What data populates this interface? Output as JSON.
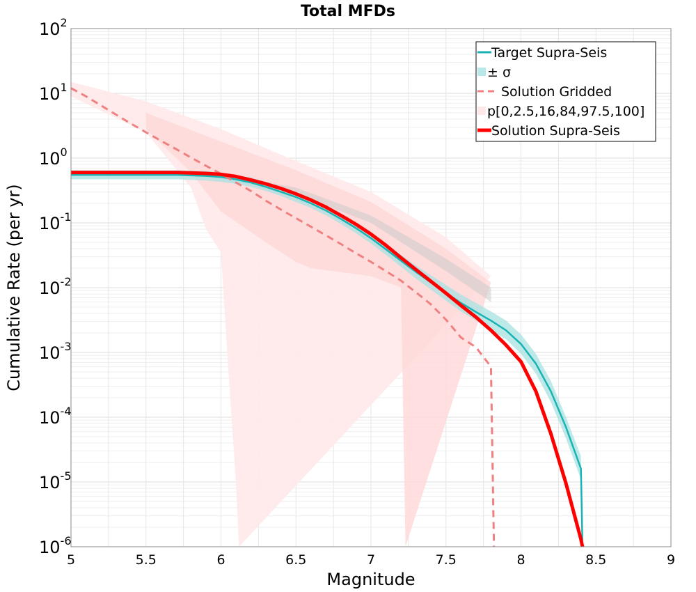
{
  "chart_data": {
    "type": "line",
    "title": "Total MFDs",
    "xlabel": "Magnitude",
    "ylabel": "Cumulative Rate (per yr)",
    "xlim": [
      5,
      9
    ],
    "ylim": [
      1e-06,
      100
    ],
    "yscale": "log",
    "grid": true,
    "legend_position": "top-right",
    "xticks": [
      "5",
      "5.5",
      "6",
      "6.5",
      "7",
      "7.5",
      "8",
      "8.5",
      "9"
    ],
    "yticks": [
      {
        "base": "10",
        "exp": "2"
      },
      {
        "base": "10",
        "exp": "1"
      },
      {
        "base": "10",
        "exp": "0"
      },
      {
        "base": "10",
        "exp": "-1"
      },
      {
        "base": "10",
        "exp": "-2"
      },
      {
        "base": "10",
        "exp": "-3"
      },
      {
        "base": "10",
        "exp": "-4"
      },
      {
        "base": "10",
        "exp": "-5"
      },
      {
        "base": "10",
        "exp": "-6"
      }
    ],
    "legend": [
      {
        "label": "Target Supra-Seis",
        "style": "line",
        "color": "#1ab3b3"
      },
      {
        "label": "± σ",
        "style": "band",
        "color": "#b8e8e8"
      },
      {
        "label": "Solution Gridded",
        "style": "dashed",
        "color": "#f08080"
      },
      {
        "label": "p[0,2.5,16,84,97.5,100]",
        "style": "band",
        "color": "#ffe8e8"
      },
      {
        "label": "Solution Supra-Seis",
        "style": "thick",
        "color": "#ff0000"
      }
    ],
    "colors": {
      "target": "#1ab3b3",
      "target_band": "#a8e2e2",
      "gridded": "#f08080",
      "supra": "#ff0000",
      "pct_outer": "#ffe9e9",
      "pct_mid": "#ffd9d9",
      "pct_inner": "#c8c8c8"
    },
    "x": [
      5.0,
      5.1,
      5.2,
      5.3,
      5.4,
      5.5,
      5.6,
      5.7,
      5.8,
      5.9,
      6.0,
      6.1,
      6.2,
      6.3,
      6.4,
      6.5,
      6.6,
      6.7,
      6.8,
      6.9,
      7.0,
      7.1,
      7.2,
      7.3,
      7.4,
      7.5,
      7.6,
      7.7,
      7.8,
      7.9,
      8.0,
      8.1,
      8.2,
      8.3,
      8.4,
      8.41
    ],
    "series": [
      {
        "name": "Target Supra-Seis",
        "role": "target",
        "values": [
          0.55,
          0.55,
          0.55,
          0.55,
          0.55,
          0.55,
          0.55,
          0.55,
          0.54,
          0.53,
          0.51,
          0.47,
          0.42,
          0.36,
          0.3,
          0.25,
          0.2,
          0.155,
          0.115,
          0.083,
          0.058,
          0.039,
          0.026,
          0.0175,
          0.012,
          0.0083,
          0.0058,
          0.0042,
          0.0031,
          0.0022,
          0.00135,
          0.00067,
          0.00025,
          7e-05,
          1.6e-05,
          1e-06
        ]
      },
      {
        "name": "± σ (upper)",
        "role": "target_upper",
        "values": [
          0.65,
          0.65,
          0.65,
          0.65,
          0.65,
          0.65,
          0.65,
          0.65,
          0.64,
          0.63,
          0.6,
          0.55,
          0.5,
          0.43,
          0.36,
          0.3,
          0.24,
          0.185,
          0.138,
          0.1,
          0.07,
          0.048,
          0.032,
          0.022,
          0.0155,
          0.011,
          0.0078,
          0.0058,
          0.0043,
          0.0031,
          0.0019,
          0.00095,
          0.00036,
          0.0001,
          2.5e-05,
          1e-06
        ]
      },
      {
        "name": "± σ (lower)",
        "role": "target_lower",
        "values": [
          0.47,
          0.47,
          0.47,
          0.47,
          0.47,
          0.47,
          0.47,
          0.47,
          0.46,
          0.45,
          0.43,
          0.4,
          0.36,
          0.31,
          0.26,
          0.21,
          0.17,
          0.13,
          0.096,
          0.069,
          0.048,
          0.032,
          0.021,
          0.0138,
          0.0093,
          0.0063,
          0.0043,
          0.0031,
          0.0022,
          0.0016,
          0.00095,
          0.00047,
          0.00017,
          4.7e-05,
          1.1e-05,
          1e-06
        ]
      },
      {
        "name": "Solution Gridded",
        "role": "gridded",
        "x": [
          5.0,
          5.1,
          5.2,
          5.3,
          5.4,
          5.5,
          5.6,
          5.7,
          5.8,
          5.9,
          6.0,
          6.1,
          6.2,
          6.3,
          6.4,
          6.5,
          6.6,
          6.7,
          6.8,
          6.9,
          7.0,
          7.1,
          7.2,
          7.3,
          7.4,
          7.5,
          7.6,
          7.7,
          7.8,
          7.82
        ],
        "values": [
          12.0,
          9.0,
          6.5,
          4.7,
          3.4,
          2.5,
          1.85,
          1.38,
          1.02,
          0.76,
          0.57,
          0.42,
          0.31,
          0.22,
          0.16,
          0.118,
          0.087,
          0.064,
          0.047,
          0.034,
          0.025,
          0.018,
          0.0128,
          0.0085,
          0.0055,
          0.0032,
          0.0017,
          0.0012,
          0.0006,
          1e-06
        ]
      },
      {
        "name": "p[0,2.5,16,84,97.5,100] (outer)",
        "role": "pct_outer",
        "upper_x": [
          5.0,
          5.5,
          6.0,
          6.5,
          7.0,
          7.5,
          7.8
        ],
        "upper": [
          15.0,
          7.5,
          2.8,
          0.9,
          0.3,
          0.06,
          0.015
        ],
        "lower_x": [
          5.0,
          5.5,
          5.8,
          5.9,
          6.0,
          6.05,
          6.1,
          6.12
        ],
        "lower": [
          9.0,
          2.5,
          0.35,
          0.08,
          0.035,
          0.0005,
          1e-05,
          1e-06
        ]
      },
      {
        "name": "p[0,2.5,16,84,97.5,100] (mid)",
        "role": "pct_mid",
        "upper_x": [
          5.5,
          6.0,
          6.5,
          7.0,
          7.5,
          7.8
        ],
        "upper": [
          5.0,
          1.8,
          0.65,
          0.21,
          0.04,
          0.012
        ],
        "lower_x": [
          5.5,
          5.8,
          6.0,
          6.3,
          6.5,
          6.6,
          7.0,
          7.2,
          7.23
        ],
        "lower": [
          2.8,
          0.6,
          0.15,
          0.05,
          0.025,
          0.02,
          0.015,
          0.01,
          1e-06
        ]
      },
      {
        "name": "p[0,2.5,16,84,97.5,100] (inner)",
        "role": "pct_inner",
        "upper_x": [
          6.0,
          6.5,
          7.0,
          7.5,
          7.8
        ],
        "upper": [
          0.58,
          0.35,
          0.13,
          0.028,
          0.01
        ],
        "lower_x": [
          6.0,
          6.5,
          7.0,
          7.5,
          7.8,
          7.81
        ],
        "lower": [
          0.48,
          0.28,
          0.1,
          0.018,
          0.006,
          1e-06
        ]
      },
      {
        "name": "Solution Supra-Seis",
        "role": "supra",
        "x": [
          5.0,
          5.1,
          5.2,
          5.3,
          5.4,
          5.5,
          5.6,
          5.7,
          5.8,
          5.9,
          6.0,
          6.1,
          6.2,
          6.3,
          6.4,
          6.5,
          6.6,
          6.7,
          6.8,
          6.9,
          7.0,
          7.1,
          7.2,
          7.3,
          7.4,
          7.5,
          7.6,
          7.7,
          7.8,
          7.9,
          8.0,
          8.1,
          8.2,
          8.3,
          8.4,
          8.41
        ],
        "values": [
          0.6,
          0.6,
          0.6,
          0.6,
          0.6,
          0.6,
          0.6,
          0.6,
          0.59,
          0.58,
          0.56,
          0.52,
          0.46,
          0.4,
          0.34,
          0.28,
          0.225,
          0.175,
          0.13,
          0.095,
          0.067,
          0.045,
          0.029,
          0.019,
          0.0125,
          0.0082,
          0.0053,
          0.0035,
          0.0022,
          0.0013,
          0.00072,
          0.00025,
          5.5e-05,
          9.5e-06,
          1.3e-06,
          1e-06
        ]
      }
    ]
  }
}
